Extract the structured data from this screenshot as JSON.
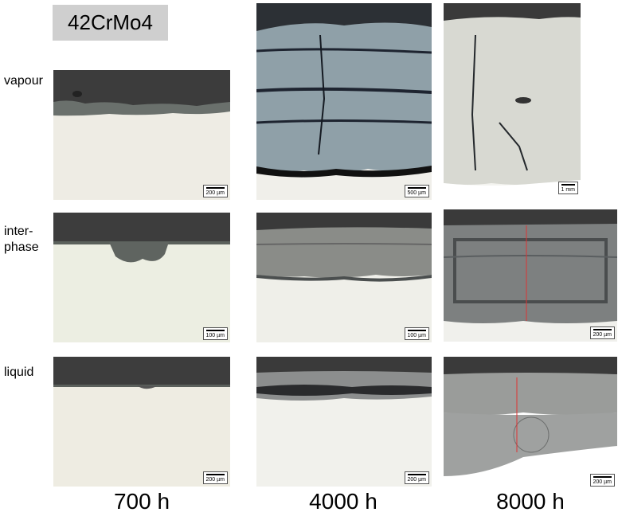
{
  "figure": {
    "title": "42CrMo4",
    "rows": [
      "vapour",
      "inter-\nphase",
      "liquid"
    ],
    "columns": [
      "700 h",
      "4000 h",
      "8000 h"
    ],
    "scale_bars": {
      "vapour_700": "200 µm",
      "vapour_4000": "500 µm",
      "vapour_8000": "1 mm",
      "inter_700": "100 µm",
      "inter_4000": "100 µm",
      "inter_8000": "200 µm",
      "liquid_700": "200 µm",
      "liquid_4000": "200 µm",
      "liquid_8000": "200 µm"
    },
    "colors": {
      "background_dark": "#3a3a3a",
      "metal": "#ecebe3",
      "scale_thick_oxide": "#9aa0a4",
      "measure_line": "#dd3333"
    }
  }
}
